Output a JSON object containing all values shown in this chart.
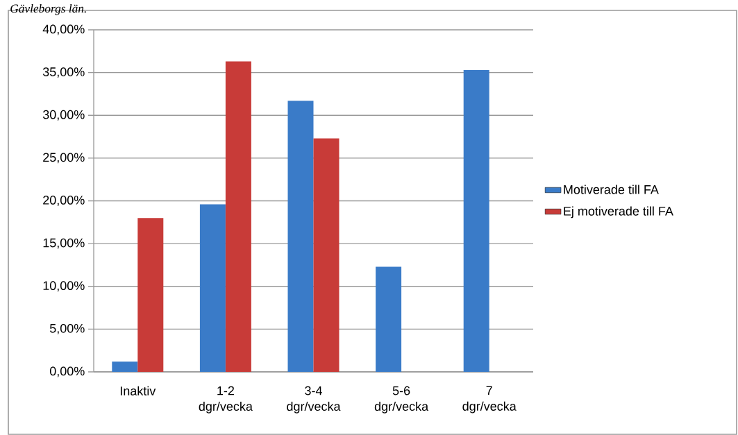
{
  "chart_data": {
    "type": "bar",
    "annotations": [
      "Gävleborgs län."
    ],
    "categories": [
      "Inaktiv",
      "1-2 dgr/vecka",
      "3-4 dgr/vecka",
      "5-6 dgr/vecka",
      "7 dgr/vecka"
    ],
    "series": [
      {
        "name": "Motiverade till FA",
        "color": "#3a7bc8",
        "values": [
          1.2,
          19.6,
          31.7,
          12.3,
          35.3
        ]
      },
      {
        "name": "Ej motiverade till FA",
        "color": "#c83b38",
        "values": [
          18.0,
          36.3,
          27.3,
          null,
          null
        ]
      }
    ],
    "ylim": [
      0,
      40
    ],
    "yticks": [
      {
        "value": 0,
        "label": "0,00%"
      },
      {
        "value": 5,
        "label": "5,00%"
      },
      {
        "value": 10,
        "label": "10,00%"
      },
      {
        "value": 15,
        "label": "15,00%"
      },
      {
        "value": 20,
        "label": "20,00%"
      },
      {
        "value": 25,
        "label": "25,00%"
      },
      {
        "value": 30,
        "label": "30,00%"
      },
      {
        "value": 35,
        "label": "35,00%"
      },
      {
        "value": 40,
        "label": "40,00%"
      }
    ],
    "grid": "y",
    "legend": "right"
  }
}
